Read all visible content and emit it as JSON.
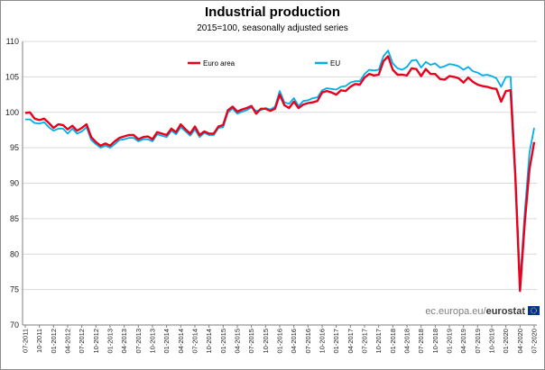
{
  "chart_data": {
    "type": "line",
    "title": "Industrial production",
    "subtitle": "2015=100, seasonally adjusted series",
    "ylim": [
      70,
      110
    ],
    "yticks": [
      70,
      75,
      80,
      85,
      90,
      95,
      100,
      105,
      110
    ],
    "xticks": [
      "07-2011",
      "10-2011",
      "01-2012",
      "04-2012",
      "07-2012",
      "10-2012",
      "01-2013",
      "04-2013",
      "07-2013",
      "10-2013",
      "01-2014",
      "04-2014",
      "07-2014",
      "10-2014",
      "01-2015",
      "04-2015",
      "07-2015",
      "10-2015",
      "01-2016",
      "04-2016",
      "07-2016",
      "10-2016",
      "01-2017",
      "04-2017",
      "07-2017",
      "10-2017",
      "01-2018",
      "04-2018",
      "07-2018",
      "10-2018",
      "01-2019",
      "04-2019",
      "07-2019",
      "10-2019",
      "01-2020",
      "04-2020",
      "07-2020"
    ],
    "grid": "horizontal",
    "legend": "top",
    "source_text": "ec.europa.eu/",
    "source_brand": "eurostat",
    "series": [
      {
        "name": "Euro area",
        "color": "#e8001c",
        "values": [
          99.9,
          100.0,
          99.1,
          98.9,
          99.1,
          98.5,
          97.8,
          98.3,
          98.2,
          97.6,
          98.1,
          97.4,
          97.8,
          98.3,
          96.5,
          95.8,
          95.3,
          95.6,
          95.3,
          95.9,
          96.4,
          96.6,
          96.8,
          96.8,
          96.2,
          96.5,
          96.6,
          96.2,
          97.2,
          97.0,
          96.8,
          97.7,
          97.2,
          98.3,
          97.6,
          97.0,
          98.0,
          96.8,
          97.3,
          97.0,
          97.0,
          98.0,
          98.2,
          100.3,
          100.8,
          100.1,
          100.4,
          100.6,
          100.9,
          99.8,
          100.5,
          100.5,
          100.2,
          100.5,
          102.5,
          101.0,
          100.6,
          101.5,
          100.6,
          101.1,
          101.3,
          101.4,
          101.6,
          102.8,
          103.0,
          102.8,
          102.5,
          103.1,
          103.0,
          103.6,
          104.0,
          103.9,
          104.9,
          105.4,
          105.2,
          105.3,
          107.2,
          107.9,
          106.0,
          105.3,
          105.3,
          105.2,
          106.2,
          106.1,
          105.1,
          106.1,
          105.4,
          105.4,
          104.7,
          104.6,
          105.1,
          105.0,
          104.8,
          104.2,
          104.9,
          104.3,
          103.9,
          103.7,
          103.6,
          103.4,
          103.3,
          101.5,
          103.0,
          103.1,
          91.0,
          74.8,
          84.5,
          92.0,
          95.8
        ]
      },
      {
        "name": "EU",
        "color": "#00aee8",
        "values": [
          99.0,
          99.0,
          98.5,
          98.4,
          98.6,
          97.9,
          97.4,
          97.7,
          97.7,
          97.0,
          97.7,
          97.0,
          97.3,
          97.9,
          96.1,
          95.5,
          95.0,
          95.3,
          95.0,
          95.5,
          96.1,
          96.2,
          96.4,
          96.4,
          95.9,
          96.2,
          96.2,
          95.9,
          96.9,
          96.7,
          96.5,
          97.4,
          96.9,
          97.9,
          97.3,
          96.7,
          97.6,
          96.5,
          97.1,
          96.8,
          96.8,
          97.8,
          97.9,
          100.0,
          100.5,
          99.8,
          100.1,
          100.3,
          100.7,
          100.2,
          100.3,
          100.6,
          100.4,
          100.8,
          103.0,
          101.4,
          101.2,
          102.0,
          100.9,
          101.6,
          101.7,
          102.0,
          102.1,
          103.1,
          103.4,
          103.3,
          103.2,
          103.6,
          103.7,
          104.2,
          104.4,
          104.4,
          105.4,
          106.0,
          105.9,
          106.0,
          107.9,
          108.7,
          106.9,
          106.2,
          106.0,
          106.4,
          107.3,
          107.4,
          106.3,
          107.1,
          106.7,
          106.9,
          106.3,
          106.5,
          106.8,
          106.7,
          106.5,
          106.0,
          106.4,
          105.8,
          105.6,
          105.2,
          105.3,
          105.1,
          104.8,
          103.6,
          105.0,
          105.0,
          91.5,
          76.0,
          86.0,
          94.3,
          97.8
        ]
      }
    ]
  }
}
